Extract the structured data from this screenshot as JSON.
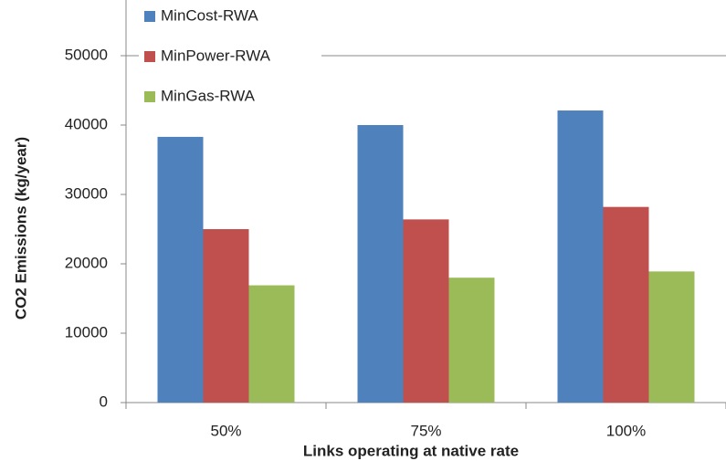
{
  "chart_data": {
    "type": "bar",
    "x_label": "Links operating at native rate",
    "y_label": "CO2 Emissions (kg/year)",
    "categories": [
      "50%",
      "75%",
      "100%"
    ],
    "series": [
      {
        "name": "MinCost-RWA",
        "color": "#4f81bd",
        "values": [
          38300,
          40000,
          42100
        ]
      },
      {
        "name": "MinPower-RWA",
        "color": "#c0504d",
        "values": [
          25000,
          26400,
          28200
        ]
      },
      {
        "name": "MinGas-RWA",
        "color": "#9bbb59",
        "values": [
          16900,
          18000,
          18900
        ]
      }
    ],
    "ylim": [
      0,
      50000
    ],
    "yticks": [
      0,
      10000,
      20000,
      30000,
      40000,
      50000
    ],
    "grid": false,
    "legend": "top-left"
  }
}
